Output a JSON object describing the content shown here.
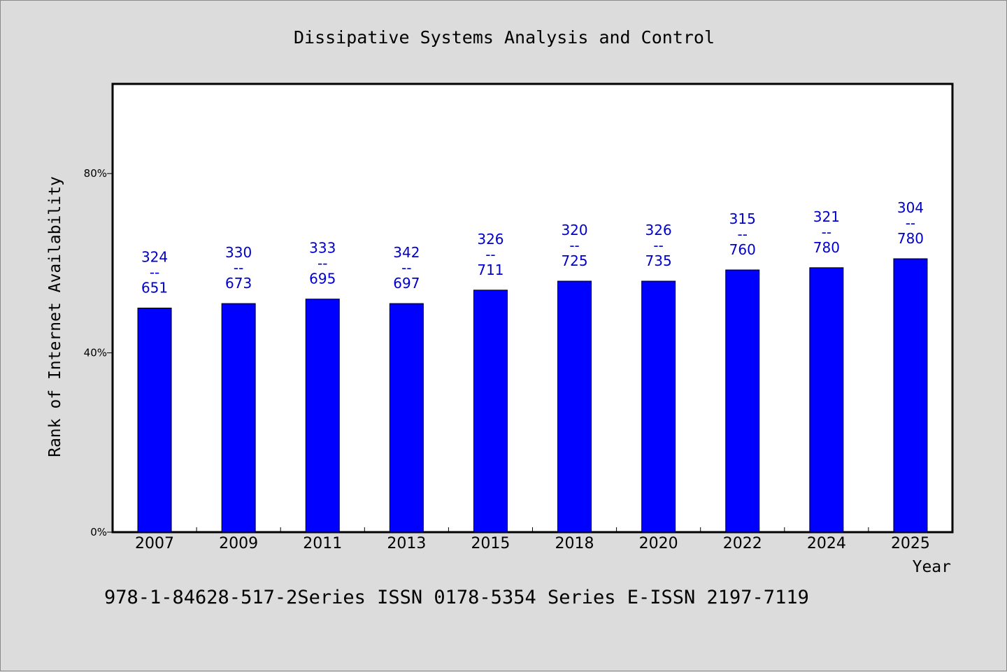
{
  "chart_data": {
    "type": "bar",
    "title": "Dissipative Systems Analysis and Control",
    "xlabel": "Year",
    "ylabel": "Rank of Internet Availability",
    "ylim": [
      0,
      100
    ],
    "yticks": [
      {
        "value": 0,
        "label": "0%"
      },
      {
        "value": 40,
        "label": "40%"
      },
      {
        "value": 80,
        "label": "80%"
      }
    ],
    "categories": [
      "2007",
      "2009",
      "2011",
      "2013",
      "2015",
      "2018",
      "2020",
      "2022",
      "2024",
      "2025"
    ],
    "values": [
      50,
      51,
      52,
      51,
      54,
      56,
      56,
      58.5,
      59,
      61
    ],
    "bar_labels": [
      {
        "top": "324",
        "mid": "--",
        "bottom": "651"
      },
      {
        "top": "330",
        "mid": "--",
        "bottom": "673"
      },
      {
        "top": "333",
        "mid": "--",
        "bottom": "695"
      },
      {
        "top": "342",
        "mid": "--",
        "bottom": "697"
      },
      {
        "top": "326",
        "mid": "--",
        "bottom": "711"
      },
      {
        "top": "320",
        "mid": "--",
        "bottom": "725"
      },
      {
        "top": "326",
        "mid": "--",
        "bottom": "735"
      },
      {
        "top": "315",
        "mid": "--",
        "bottom": "760"
      },
      {
        "top": "321",
        "mid": "--",
        "bottom": "780"
      },
      {
        "top": "304",
        "mid": "--",
        "bottom": "780"
      }
    ],
    "grid": false,
    "bar_color": "#0000ff",
    "label_color": "#0000cc",
    "footer": "978-1-84628-517-2Series ISSN 0178-5354 Series E-ISSN 2197-7119"
  },
  "colors": {
    "background": "#dcdcdc",
    "plot_area": "#ffffff",
    "bar": "#0000ff",
    "label": "#0000cc"
  }
}
